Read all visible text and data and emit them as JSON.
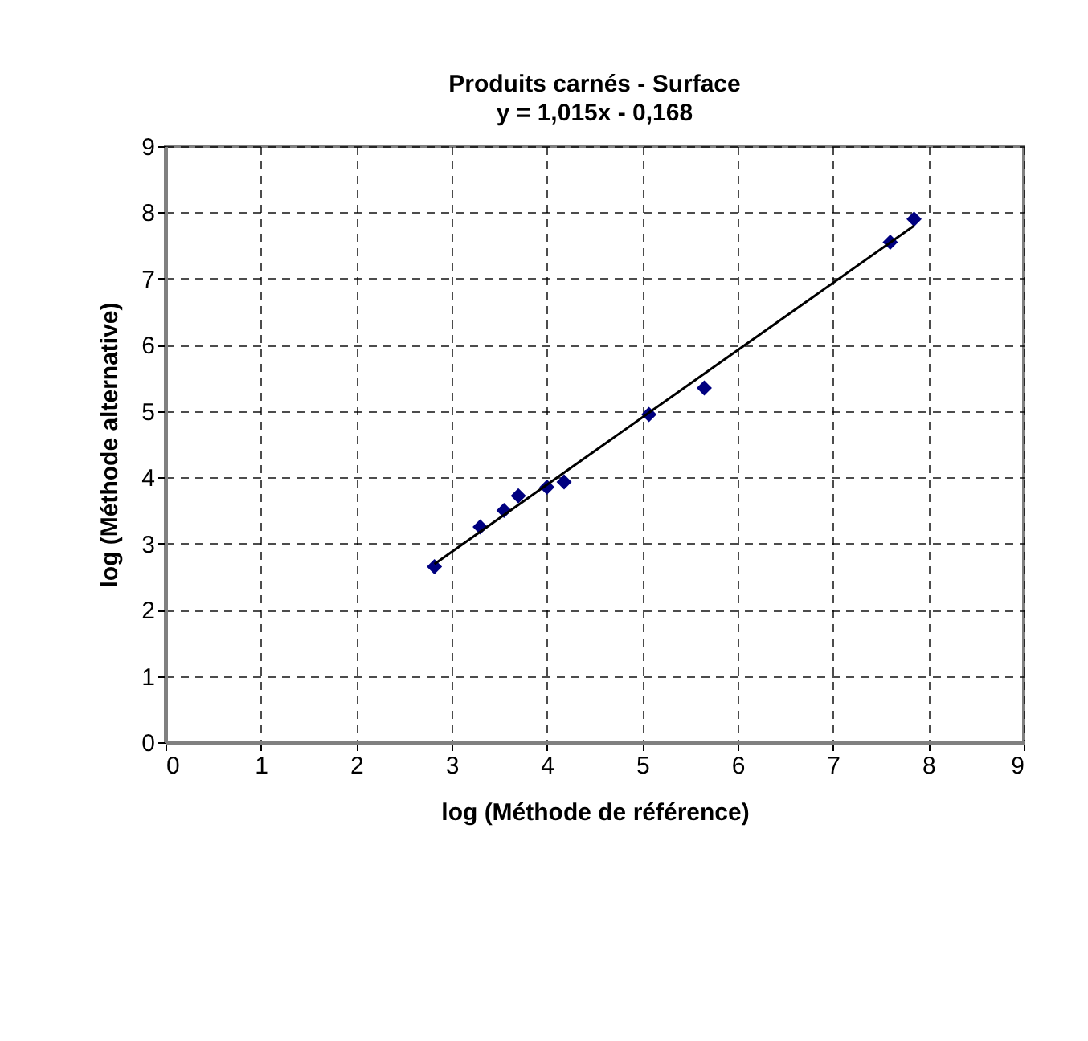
{
  "chart_data": {
    "type": "scatter",
    "title": "Produits carnés - Surface",
    "subtitle": "y = 1,015x - 0,168",
    "xlabel": "log (Méthode de référence)",
    "ylabel": "log (Méthode alternative)",
    "x": [
      2.82,
      3.3,
      3.55,
      3.7,
      4.0,
      4.18,
      5.07,
      5.65,
      7.6,
      7.85
    ],
    "series": [
      {
        "color": "#000080",
        "marker": "diamond",
        "values": [
          2.65,
          3.25,
          3.5,
          3.72,
          3.85,
          3.93,
          4.95,
          5.35,
          7.55,
          7.9
        ]
      },
      {
        "type": "line",
        "color": "#000000",
        "marker": "none",
        "line_style": "solid",
        "x": [
          2.82,
          7.85
        ],
        "values": [
          2.69,
          7.8
        ]
      }
    ],
    "xlim": [
      0,
      9
    ],
    "ylim": [
      0,
      9
    ],
    "xticks": [
      0,
      1,
      2,
      3,
      4,
      5,
      6,
      7,
      8,
      9
    ],
    "yticks": [
      0,
      1,
      2,
      3,
      4,
      5,
      6,
      7,
      8,
      9
    ],
    "grid": true
  }
}
